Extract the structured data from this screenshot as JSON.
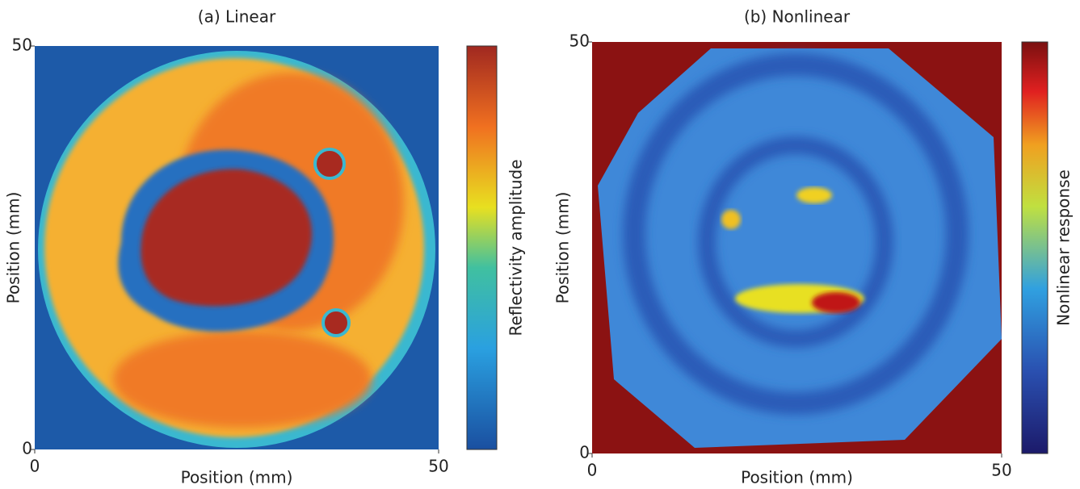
{
  "chart_data": [
    {
      "type": "heatmap",
      "title": "(a) Linear",
      "xlabel": "Position (mm)",
      "ylabel": "Position (mm)",
      "colorbar_label": "Reflectivity amplitude",
      "xlim": [
        0,
        50
      ],
      "ylim": [
        0,
        50
      ],
      "xticks": [
        0,
        50
      ],
      "yticks": [
        0,
        50
      ]
    },
    {
      "type": "heatmap",
      "title": "(b) Nonlinear",
      "xlabel": "Position (mm)",
      "ylabel": "Position (mm)",
      "colorbar_label": "Nonlinear response",
      "xlim": [
        0,
        50
      ],
      "ylim": [
        0,
        50
      ],
      "xticks": [
        0,
        50
      ],
      "yticks": [
        0,
        50
      ]
    }
  ]
}
